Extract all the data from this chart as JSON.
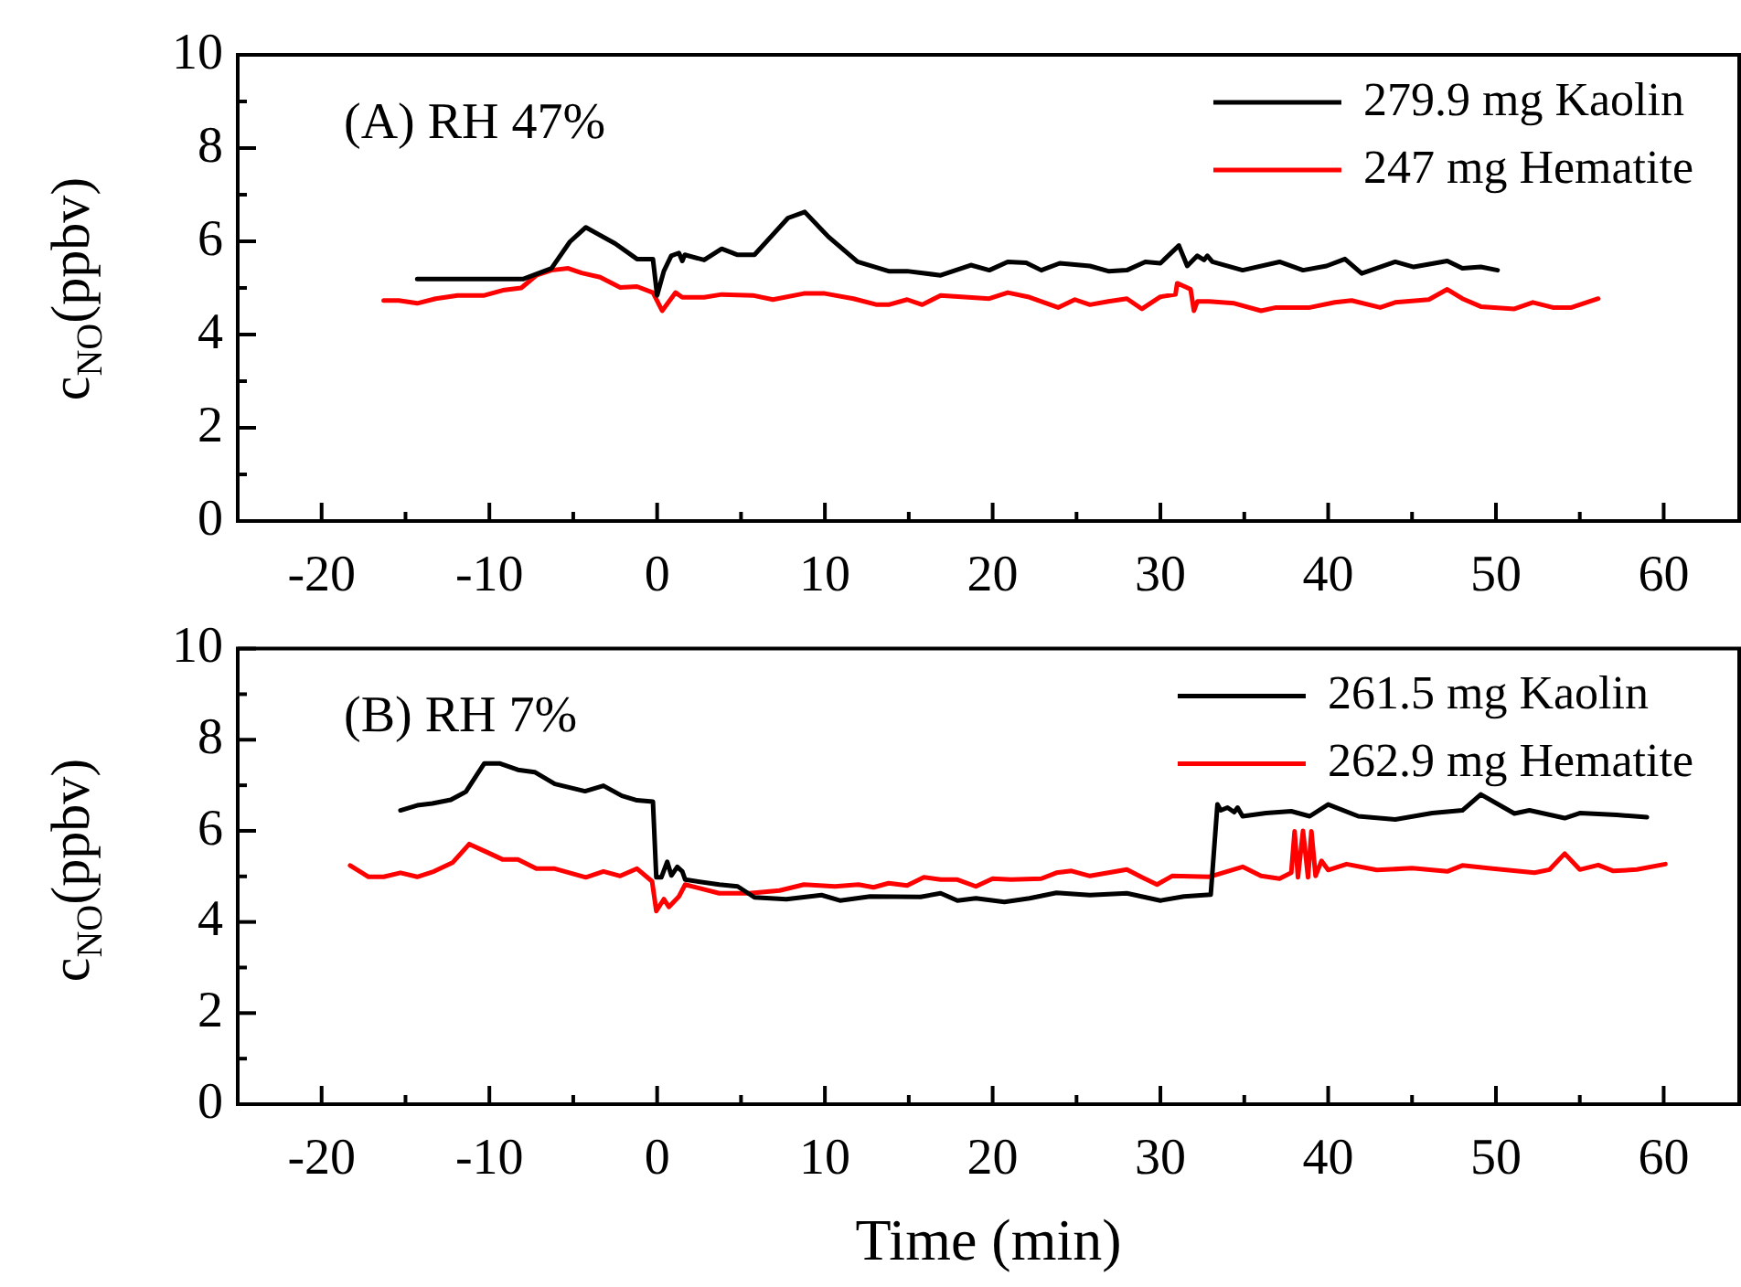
{
  "chart_data": [
    {
      "type": "line",
      "ylabel": "c$_{NO}$(ppbv)",
      "annotations": [
        "(A) RH 47%"
      ],
      "legend": "top right",
      "grid": false,
      "marker": "none",
      "xlim": [
        -25,
        64.5
      ],
      "ylim": [
        0,
        10
      ],
      "xticks": [
        -20,
        {
          "value": -15,
          "label": null
        },
        -10,
        {
          "value": -5,
          "label": null
        },
        0,
        {
          "value": 5,
          "label": null
        },
        10,
        {
          "value": 15,
          "label": null
        },
        20,
        {
          "value": 25,
          "label": null
        },
        30,
        {
          "value": 35,
          "label": null
        },
        40,
        {
          "value": 45,
          "label": null
        },
        50,
        {
          "value": 55,
          "label": null
        },
        60
      ],
      "yticks": [
        0,
        {
          "value": 1,
          "label": null
        },
        2,
        {
          "value": 3,
          "label": null
        },
        4,
        {
          "value": 5,
          "label": null
        },
        6,
        {
          "value": 7,
          "label": null
        },
        8,
        {
          "value": 9,
          "label": null
        },
        10
      ],
      "series": [
        {
          "name": "279.9 mg Kaolin",
          "color": "#000000",
          "x": [
            -14.3,
            -8.0,
            -6.3,
            -5.2,
            -4.25,
            -2.5,
            -1.2,
            -0.25,
            0.0,
            0.4,
            0.84,
            1.3,
            1.5,
            1.65,
            2.8,
            3.85,
            4.8,
            5.8,
            7.8,
            8.8,
            10.2,
            11.95,
            13.8,
            14.9,
            16.9,
            18.7,
            19.8,
            20.9,
            22.0,
            22.9,
            24.0,
            25.8,
            26.9,
            28.0,
            29.1,
            30.0,
            31.1,
            31.6,
            32.2,
            32.6,
            32.8,
            33.1,
            34.9,
            37.1,
            38.5,
            39.9,
            41.0,
            42.0,
            44.0,
            45.1,
            47.1,
            48.0,
            49.1,
            50.1
          ],
          "values": [
            5.19,
            5.19,
            5.42,
            5.99,
            6.3,
            5.95,
            5.62,
            5.62,
            4.84,
            5.36,
            5.69,
            5.75,
            5.58,
            5.71,
            5.6,
            5.84,
            5.71,
            5.71,
            6.5,
            6.63,
            6.1,
            5.56,
            5.36,
            5.36,
            5.27,
            5.49,
            5.38,
            5.56,
            5.54,
            5.38,
            5.53,
            5.47,
            5.36,
            5.38,
            5.56,
            5.53,
            5.91,
            5.47,
            5.69,
            5.6,
            5.69,
            5.56,
            5.38,
            5.56,
            5.38,
            5.47,
            5.62,
            5.31,
            5.56,
            5.45,
            5.58,
            5.42,
            5.45,
            5.38
          ]
        },
        {
          "name": "247 mg Hematite",
          "color": "#ff0000",
          "x": [
            -16.3,
            -15.4,
            -14.3,
            -13.2,
            -11.9,
            -10.3,
            -9.2,
            -8.1,
            -7.2,
            -6.3,
            -5.3,
            -4.5,
            -3.4,
            -2.2,
            -1.2,
            -0.25,
            0.3,
            1.1,
            1.5,
            2.8,
            3.85,
            5.7,
            6.9,
            8.75,
            10.0,
            11.7,
            13.1,
            13.8,
            14.9,
            15.8,
            16.9,
            19.8,
            20.9,
            22.1,
            23.9,
            24.9,
            25.8,
            26.9,
            28.0,
            28.9,
            30.0,
            30.9,
            31.0,
            31.45,
            31.8,
            32.0,
            32.2,
            32.9,
            34.4,
            36.0,
            36.9,
            38.9,
            40.4,
            41.4,
            43.1,
            44.0,
            46.0,
            47.1,
            48.0,
            49.1,
            51.1,
            52.2,
            53.4,
            54.5,
            56.1
          ],
          "values": [
            4.73,
            4.73,
            4.67,
            4.77,
            4.84,
            4.84,
            4.95,
            5.0,
            5.27,
            5.38,
            5.42,
            5.32,
            5.23,
            5.01,
            5.03,
            4.9,
            4.51,
            4.9,
            4.8,
            4.8,
            4.86,
            4.84,
            4.75,
            4.88,
            4.88,
            4.77,
            4.64,
            4.64,
            4.75,
            4.64,
            4.84,
            4.77,
            4.9,
            4.81,
            4.58,
            4.75,
            4.64,
            4.71,
            4.77,
            4.55,
            4.81,
            4.86,
            5.1,
            5.03,
            4.97,
            4.51,
            4.71,
            4.71,
            4.67,
            4.51,
            4.58,
            4.58,
            4.69,
            4.73,
            4.58,
            4.69,
            4.75,
            4.97,
            4.77,
            4.6,
            4.55,
            4.69,
            4.58,
            4.58,
            4.77
          ]
        }
      ]
    },
    {
      "type": "line",
      "xlabel": "Time (min)",
      "ylabel": "c$_{NO}$(ppbv)",
      "annotations": [
        "(B) RH 7%"
      ],
      "legend": "top right",
      "grid": false,
      "marker": "none",
      "xlim": [
        -25,
        64.5
      ],
      "ylim": [
        0,
        10
      ],
      "xticks": [
        -20,
        {
          "value": -15,
          "label": null
        },
        -10,
        {
          "value": -5,
          "label": null
        },
        0,
        {
          "value": 5,
          "label": null
        },
        10,
        {
          "value": 15,
          "label": null
        },
        20,
        {
          "value": 25,
          "label": null
        },
        30,
        {
          "value": 35,
          "label": null
        },
        40,
        {
          "value": 45,
          "label": null
        },
        50,
        {
          "value": 55,
          "label": null
        },
        60
      ],
      "yticks": [
        0,
        {
          "value": 1,
          "label": null
        },
        2,
        {
          "value": 3,
          "label": null
        },
        4,
        {
          "value": 5,
          "label": null
        },
        6,
        {
          "value": 7,
          "label": null
        },
        8,
        {
          "value": 9,
          "label": null
        },
        10
      ],
      "series": [
        {
          "name": "261.5 mg Kaolin",
          "color": "#000000",
          "x": [
            -15.3,
            -14.3,
            -13.4,
            -12.3,
            -11.4,
            -10.3,
            -9.4,
            -8.3,
            -7.3,
            -6.1,
            -4.3,
            -3.2,
            -2.1,
            -1.2,
            -0.25,
            -0.05,
            0.25,
            0.6,
            0.85,
            1.2,
            1.5,
            1.67,
            3.7,
            4.8,
            5.8,
            7.7,
            9.8,
            10.9,
            12.7,
            15.7,
            16.9,
            17.9,
            19.0,
            20.7,
            22.2,
            23.8,
            25.8,
            28.0,
            30.0,
            31.4,
            33.0,
            33.4,
            33.6,
            34.0,
            34.4,
            34.6,
            34.9,
            36.3,
            37.8,
            38.9,
            40.0,
            41.8,
            44.0,
            46.2,
            48.0,
            49.1,
            51.1,
            52.0,
            54.1,
            55.0,
            57.2,
            59.0
          ],
          "values": [
            6.45,
            6.56,
            6.6,
            6.68,
            6.86,
            7.48,
            7.48,
            7.34,
            7.29,
            7.03,
            6.87,
            6.99,
            6.77,
            6.67,
            6.64,
            4.98,
            4.98,
            5.32,
            5.02,
            5.21,
            5.11,
            4.93,
            4.82,
            4.78,
            4.54,
            4.5,
            4.59,
            4.47,
            4.56,
            4.55,
            4.63,
            4.47,
            4.52,
            4.44,
            4.52,
            4.64,
            4.59,
            4.63,
            4.47,
            4.56,
            4.6,
            6.58,
            6.45,
            6.51,
            6.41,
            6.51,
            6.32,
            6.39,
            6.43,
            6.32,
            6.58,
            6.32,
            6.25,
            6.39,
            6.45,
            6.8,
            6.38,
            6.45,
            6.28,
            6.39,
            6.35,
            6.3
          ]
        },
        {
          "name": "262.9 mg Hematite",
          "color": "#ff0000",
          "x": [
            -18.3,
            -17.2,
            -16.3,
            -15.3,
            -14.3,
            -13.3,
            -12.2,
            -11.2,
            -10.2,
            -9.2,
            -8.3,
            -7.2,
            -6.1,
            -4.25,
            -3.2,
            -2.2,
            -1.2,
            -0.3,
            -0.05,
            0.4,
            0.7,
            1.3,
            1.67,
            3.7,
            5.5,
            7.3,
            8.75,
            10.6,
            12.0,
            12.9,
            13.8,
            14.9,
            15.9,
            16.9,
            17.9,
            19.0,
            20.0,
            21.1,
            22.9,
            23.8,
            24.7,
            25.8,
            26.9,
            28.0,
            28.9,
            29.8,
            30.7,
            32.9,
            34.9,
            36.0,
            37.1,
            37.8,
            38.0,
            38.2,
            38.5,
            38.8,
            39.0,
            39.25,
            39.6,
            40.0,
            41.1,
            42.9,
            45.0,
            47.1,
            48.0,
            49.8,
            52.3,
            53.2,
            54.1,
            55.0,
            56.1,
            57.0,
            58.4,
            60.1
          ],
          "values": [
            5.24,
            4.99,
            4.99,
            5.08,
            4.99,
            5.11,
            5.3,
            5.71,
            5.54,
            5.37,
            5.37,
            5.17,
            5.17,
            4.98,
            5.11,
            5.01,
            5.17,
            4.89,
            4.24,
            4.5,
            4.33,
            4.56,
            4.82,
            4.63,
            4.63,
            4.69,
            4.82,
            4.78,
            4.82,
            4.76,
            4.85,
            4.8,
            4.98,
            4.93,
            4.93,
            4.78,
            4.95,
            4.93,
            4.95,
            5.08,
            5.12,
            5.01,
            5.08,
            5.15,
            4.98,
            4.82,
            5.01,
            4.99,
            5.21,
            5.01,
            4.95,
            5.08,
            5.99,
            4.98,
            6.0,
            4.98,
            5.99,
            5.01,
            5.34,
            5.14,
            5.27,
            5.14,
            5.18,
            5.11,
            5.24,
            5.17,
            5.08,
            5.15,
            5.5,
            5.15,
            5.25,
            5.12,
            5.15,
            5.27
          ]
        }
      ]
    }
  ]
}
